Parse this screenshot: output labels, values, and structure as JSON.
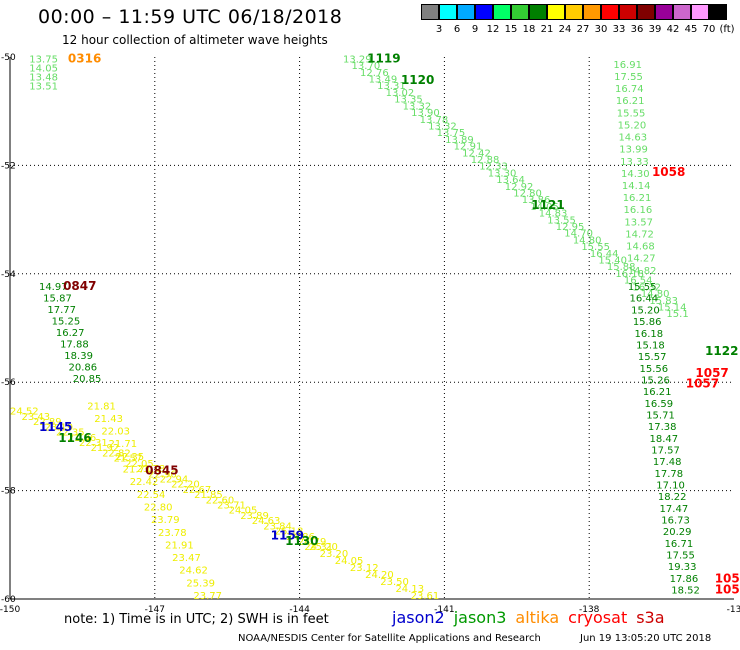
{
  "header": {
    "title": "00:00 – 11:59 UTC 06/18/2018",
    "subtitle": "12 hour collection of altimeter wave heights"
  },
  "legend": {
    "unit": "(ft)",
    "items": [
      {
        "color": "#808080",
        "label": "3"
      },
      {
        "color": "#00ffff",
        "label": "6"
      },
      {
        "color": "#00aaff",
        "label": "9"
      },
      {
        "color": "#0000ff",
        "label": "12"
      },
      {
        "color": "#00ff66",
        "label": "15"
      },
      {
        "color": "#33cc33",
        "label": "18"
      },
      {
        "color": "#008000",
        "label": "21"
      },
      {
        "color": "#ffff00",
        "label": "24"
      },
      {
        "color": "#ffcc00",
        "label": "27"
      },
      {
        "color": "#ff9900",
        "label": "30"
      },
      {
        "color": "#ff0000",
        "label": "33"
      },
      {
        "color": "#cc0000",
        "label": "36"
      },
      {
        "color": "#800000",
        "label": "39"
      },
      {
        "color": "#990099",
        "label": "42"
      },
      {
        "color": "#cc66cc",
        "label": "45"
      },
      {
        "color": "#ff99ff",
        "label": "70"
      },
      {
        "color": "#000000",
        "label": ""
      }
    ]
  },
  "axes": {
    "lon_ticks": [
      "-150",
      "-147",
      "-144",
      "-141",
      "-138",
      "-13"
    ],
    "lat_ticks": [
      "-50",
      "-52",
      "-54",
      "-56",
      "-58",
      "-60"
    ]
  },
  "passes": [
    {
      "label": "0316",
      "satellite": "altika",
      "lon": -148.8,
      "lat": -50.1,
      "color": "#ff8c00"
    },
    {
      "label": "1119",
      "satellite": "jason3",
      "lon": -142.6,
      "lat": -50.1,
      "color": "#008000"
    },
    {
      "label": "1120",
      "satellite": "jason3",
      "lon": -141.9,
      "lat": -50.5,
      "color": "#008000"
    },
    {
      "label": "1058",
      "satellite": "cryosat",
      "lon": -136.7,
      "lat": -52.2,
      "color": "#ff0000"
    },
    {
      "label": "1121",
      "satellite": "jason3",
      "lon": -139.2,
      "lat": -52.8,
      "color": "#008000"
    },
    {
      "label": "0847",
      "satellite": "cryosat",
      "lon": -148.9,
      "lat": -54.3,
      "color": "#800000"
    },
    {
      "label": "1122",
      "satellite": "jason3",
      "lon": -135.6,
      "lat": -55.5,
      "color": "#008000"
    },
    {
      "label": "1057",
      "satellite": "cryosat",
      "lon": -135.8,
      "lat": -55.9,
      "color": "#ff0000"
    },
    {
      "label": "1057",
      "satellite": "cryosat",
      "lon": -136.0,
      "lat": -56.1,
      "color": "#ff0000"
    },
    {
      "label": "1145",
      "satellite": "jason2",
      "lon": -149.4,
      "lat": -56.9,
      "color": "#0000cc"
    },
    {
      "label": "1146",
      "satellite": "jason3",
      "lon": -149.0,
      "lat": -57.1,
      "color": "#008000"
    },
    {
      "label": "0845",
      "satellite": "cryosat",
      "lon": -147.2,
      "lat": -57.7,
      "color": "#800000"
    },
    {
      "label": "1159",
      "satellite": "jason2",
      "lon": -144.6,
      "lat": -58.9,
      "color": "#0000cc"
    },
    {
      "label": "1130",
      "satellite": "jason3",
      "lon": -144.3,
      "lat": -59.0,
      "color": "#008000"
    },
    {
      "label": "105",
      "satellite": "cryosat",
      "lon": -135.4,
      "lat": -59.7,
      "color": "#ff0000"
    },
    {
      "label": "105",
      "satellite": "cryosat",
      "lon": -135.4,
      "lat": -59.9,
      "color": "#ff0000"
    }
  ],
  "tracks": [
    {
      "name": "track-upper-left",
      "color": "#66dd66",
      "start": [
        -149.6,
        -50.1
      ],
      "end": [
        -149.6,
        -50.6
      ],
      "values": [
        "13.75",
        "14.05",
        "13.48",
        "13.51"
      ]
    },
    {
      "name": "track-diagonal-north",
      "color": "#66dd66",
      "start": [
        -143.1,
        -50.1
      ],
      "end": [
        -136.4,
        -54.8
      ],
      "values": [
        "13.29",
        "13.70",
        "12.76",
        "13.49",
        "13.31",
        "13.02",
        "13.35",
        "13.32",
        "13.90",
        "13.78",
        "13.32",
        "13.75",
        "13.89",
        "12.91",
        "12.42",
        "12.88",
        "12.33",
        "13.30",
        "13.64",
        "12.92",
        "12.80",
        "13.86",
        "14.05",
        "14.83",
        "13.55",
        "12.95",
        "14.70",
        "14.80",
        "15.55",
        "16.44",
        "15.40",
        "15.88",
        "16.18",
        "16.54",
        "16.32",
        "14.80",
        "15.83",
        "15.14",
        "15.1"
      ]
    },
    {
      "name": "track-vertical-east",
      "color": "#66dd66",
      "start": [
        -137.5,
        -50.2
      ],
      "end": [
        -137.2,
        -54.0
      ],
      "values": [
        "16.91",
        "17.55",
        "16.74",
        "16.21",
        "15.55",
        "15.20",
        "14.63",
        "13.99",
        "13.33",
        "14.30",
        "14.14",
        "16.21",
        "16.16",
        "13.57",
        "14.72",
        "14.68",
        "14.27",
        "14.82"
      ]
    },
    {
      "name": "track-vertical-east-south",
      "color": "#008000",
      "start": [
        -137.2,
        -54.3
      ],
      "end": [
        -136.3,
        -59.9
      ],
      "values": [
        "15.55",
        "16.44",
        "15.20",
        "15.86",
        "16.18",
        "15.18",
        "15.57",
        "15.56",
        "15.26",
        "16.21",
        "16.59",
        "15.71",
        "17.38",
        "18.47",
        "17.57",
        "17.48",
        "17.78",
        "17.10",
        "18.22",
        "17.47",
        "16.73",
        "20.29",
        "16.71",
        "17.55",
        "19.33",
        "17.86",
        "18.52"
      ]
    },
    {
      "name": "track-west",
      "color": "#008000",
      "start": [
        -149.4,
        -54.3
      ],
      "end": [
        -148.7,
        -56.0
      ],
      "values": [
        "14.97",
        "15.87",
        "17.77",
        "15.25",
        "16.27",
        "17.88",
        "18.39",
        "20.86",
        "20.85"
      ]
    },
    {
      "name": "track-southwest-a",
      "color": "#eeee00",
      "start": [
        -150.0,
        -56.6
      ],
      "end": [
        -143.8,
        -59.1
      ],
      "values": [
        "24.52",
        "23.43",
        "22.89",
        "23.19",
        "22.35",
        "21.96",
        "22.31",
        "21.92",
        "22.82",
        "21.57",
        "22.05",
        "23.78",
        "22.96",
        "22.94",
        "22.20",
        "22.67",
        "21.85",
        "22.60",
        "23.71",
        "24.05",
        "23.89",
        "24.63",
        "23.84",
        "25.18",
        "24.86",
        "24.79",
        "25.20"
      ]
    },
    {
      "name": "track-southwest-b",
      "color": "#eeee00",
      "start": [
        -148.4,
        -56.5
      ],
      "end": [
        -146.2,
        -60.0
      ],
      "values": [
        "21.81",
        "21.43",
        "22.03",
        "21.71",
        "22.35",
        "21.71",
        "22.42",
        "22.54",
        "22.80",
        "23.79",
        "23.78",
        "21.91",
        "23.47",
        "24.62",
        "25.39",
        "23.77"
      ]
    },
    {
      "name": "track-southwest-c",
      "color": "#eeee00",
      "start": [
        -143.9,
        -59.1
      ],
      "end": [
        -141.7,
        -60.0
      ],
      "values": [
        "24.31",
        "23.20",
        "24.05",
        "23.12",
        "24.20",
        "23.50",
        "24.13",
        "23.61"
      ]
    }
  ],
  "footer": {
    "note": "note: 1) Time is in UTC; 2) SWH is in feet",
    "satellites": [
      {
        "name": "jason2",
        "color": "#0000cc"
      },
      {
        "name": "jason3",
        "color": "#009900"
      },
      {
        "name": "altika",
        "color": "#ff8c00"
      },
      {
        "name": "cryosat",
        "color": "#ff0000"
      },
      {
        "name": "s3a",
        "color": "#cc0000"
      }
    ],
    "credit": "NOAA/NESDIS Center for Satellite Applications and Research",
    "timestamp": "Jun 19 13:05:20 UTC 2018"
  }
}
